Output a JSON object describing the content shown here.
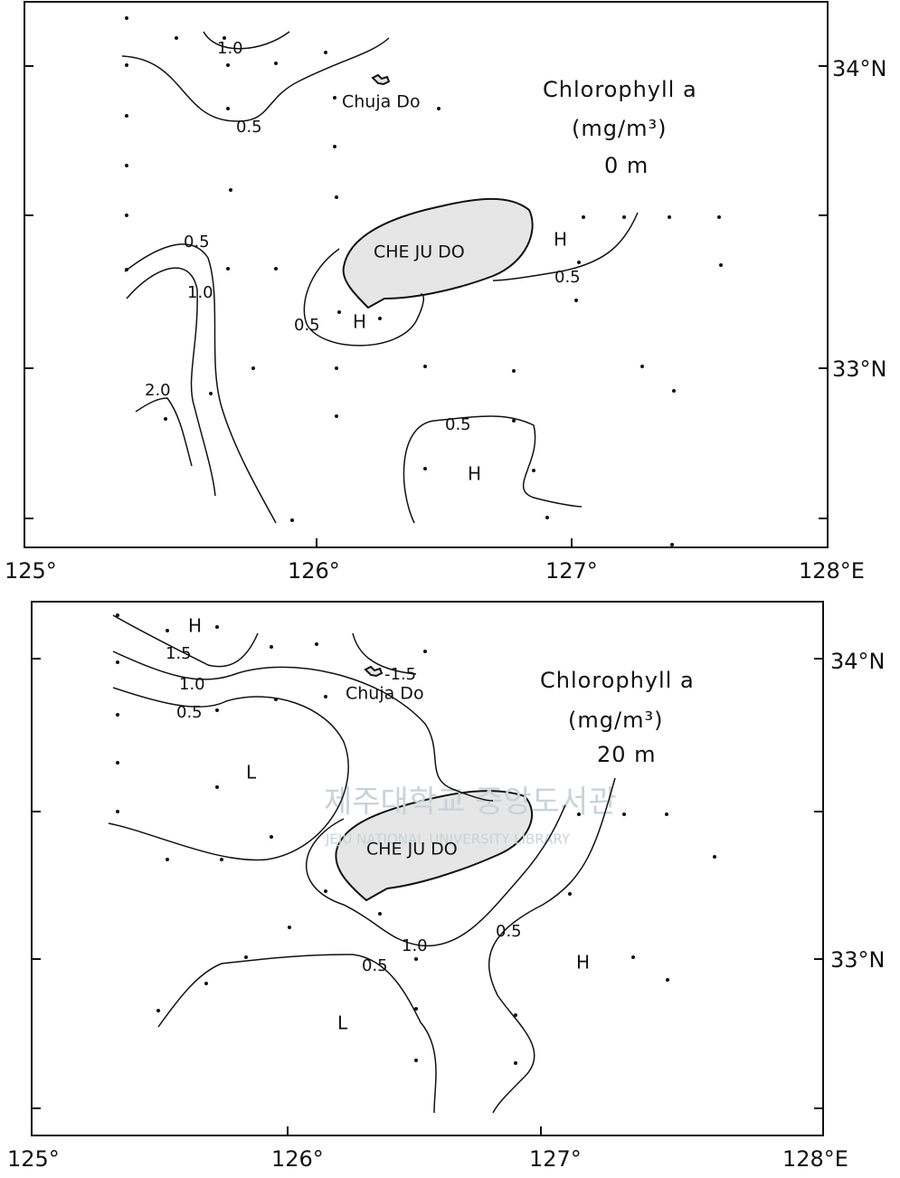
{
  "panels": [
    {
      "title": "Chlorophyll a",
      "unit": "(mg/m³)",
      "depth": "0 m",
      "islands": [
        "Chuja Do",
        "CHE JU DO"
      ],
      "contour_labels": [
        "1.0",
        "0.5",
        "0.5",
        "1.0",
        "2.0",
        "0.5",
        "0.5",
        "0.5"
      ],
      "markers": [
        "H",
        "H",
        "H"
      ],
      "xticks": [
        "125°",
        "126°",
        "127°",
        "128°E"
      ],
      "yticks": [
        "34°N",
        "33°N"
      ]
    },
    {
      "title": "Chlorophyll a",
      "unit": "(mg/m³)",
      "depth": "20 m",
      "islands": [
        "Chuja Do",
        "CHE JU DO"
      ],
      "contour_labels": [
        "1.5",
        "1.0",
        "0.5",
        "-1.5",
        "1.0",
        "0.5",
        "0.5"
      ],
      "markers": [
        "H",
        "L",
        "L",
        "H"
      ],
      "xticks": [
        "125°",
        "126°",
        "127°",
        "128°E"
      ],
      "yticks": [
        "34°N",
        "33°N"
      ]
    }
  ],
  "watermark": [
    "제주대학교 중앙도서관",
    "JEJU NATIONAL UNIVERSITY LIBRARY"
  ]
}
